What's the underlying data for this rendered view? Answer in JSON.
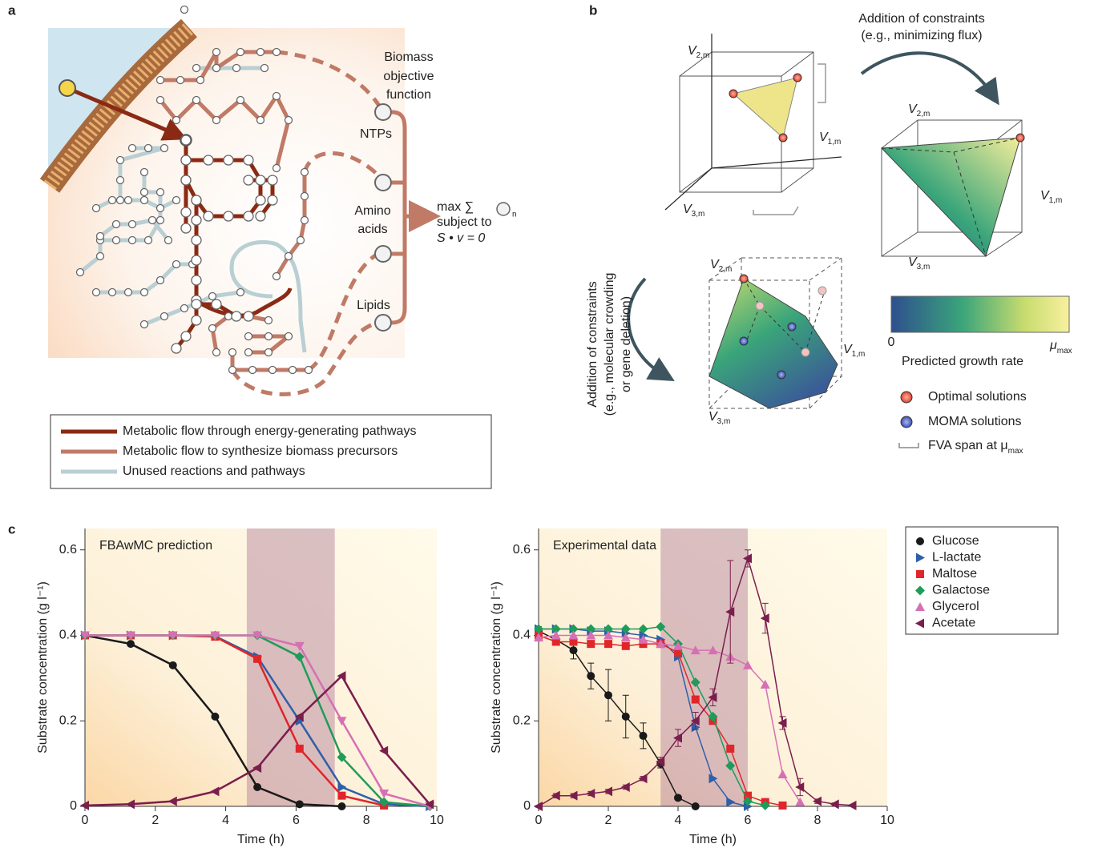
{
  "panel_labels": [
    "a",
    "b",
    "c"
  ],
  "panel_a": {
    "biomass_label": [
      "Biomass",
      "objective",
      "function"
    ],
    "ntps": "NTPs",
    "amino_acids": [
      "Amino",
      "acids"
    ],
    "lipids": "Lipids",
    "objective": {
      "max": "max ∑",
      "subscript": "n",
      "subject": "subject to",
      "constraint": "S • v = 0"
    },
    "legend": [
      "Metabolic flow through energy-generating pathways",
      "Metabolic flow to synthesize biomass precursors",
      "Unused reactions and pathways"
    ]
  },
  "panel_b": {
    "top_arrow": [
      "Addition of constraints",
      "(e.g., minimizing flux)"
    ],
    "side_arrow": [
      "Addition of constraints",
      "(e.g., molecular crowding",
      "or gene deletion)"
    ],
    "axis_symbol": "V",
    "axis_subscripts": [
      "1,m",
      "2,m",
      "3,m"
    ],
    "colorbar": {
      "min_label": 0,
      "max_symbol": "μ",
      "max_subscript": "max",
      "title": "Predicted growth rate"
    },
    "legend": [
      "Optimal solutions",
      "MOMA solutions"
    ],
    "fva": {
      "text": "FVA span at μ",
      "subscript": "max"
    }
  },
  "chart_data": [
    {
      "type": "line",
      "annotation": "FBAwMC prediction",
      "xlabel": "Time (h)",
      "ylabel": "Substrate concentration (g l⁻¹)",
      "xlim": [
        0,
        10
      ],
      "ylim": [
        0,
        0.65
      ],
      "xticks": [
        0,
        2,
        4,
        6,
        8,
        10
      ],
      "yticks": [
        0,
        0.2,
        0.4,
        0.6
      ],
      "shaded_span": [
        4.6,
        7.1
      ],
      "series": [
        {
          "color": "#1a1a1a",
          "marker": "circle",
          "x": [
            0,
            1.3,
            2.5,
            3.7,
            4.9,
            6.1,
            7.3
          ],
          "values": [
            0.4,
            0.38,
            0.33,
            0.21,
            0.045,
            0.005,
            0
          ]
        },
        {
          "color": "#2f5fa8",
          "marker": "triangle-right",
          "x": [
            0,
            1.3,
            2.5,
            3.7,
            4.9,
            6.1,
            7.3,
            8.5,
            9.8
          ],
          "values": [
            0.4,
            0.4,
            0.4,
            0.398,
            0.35,
            0.2,
            0.045,
            0.005,
            0
          ]
        },
        {
          "color": "#e0262b",
          "marker": "square",
          "x": [
            0,
            1.3,
            2.5,
            3.7,
            4.9,
            6.1,
            7.3,
            8.5
          ],
          "values": [
            0.4,
            0.4,
            0.4,
            0.397,
            0.345,
            0.135,
            0.025,
            0.002
          ]
        },
        {
          "color": "#1f9b5a",
          "marker": "diamond",
          "x": [
            0,
            1.3,
            2.5,
            3.7,
            4.9,
            6.1,
            7.3,
            8.5,
            9.8
          ],
          "values": [
            0.4,
            0.4,
            0.4,
            0.4,
            0.4,
            0.35,
            0.115,
            0.01,
            0
          ]
        },
        {
          "color": "#d670b4",
          "marker": "triangle-down",
          "x": [
            0,
            1.3,
            2.5,
            3.7,
            4.9,
            6.1,
            7.3,
            8.5,
            9.8
          ],
          "values": [
            0.4,
            0.4,
            0.4,
            0.4,
            0.4,
            0.375,
            0.2,
            0.03,
            0
          ]
        },
        {
          "color": "#7a1e4d",
          "marker": "triangle-left",
          "x": [
            0,
            1.3,
            2.5,
            3.7,
            4.9,
            6.1,
            7.3,
            8.5,
            9.8
          ],
          "values": [
            0.002,
            0.005,
            0.012,
            0.035,
            0.09,
            0.21,
            0.305,
            0.13,
            0.005
          ]
        }
      ]
    },
    {
      "type": "line",
      "annotation": "Experimental data",
      "xlabel": "Time (h)",
      "ylabel": "Substrate concentration (g l⁻¹)",
      "xlim": [
        0,
        10
      ],
      "ylim": [
        0,
        0.65
      ],
      "xticks": [
        0,
        2,
        4,
        6,
        8,
        10
      ],
      "yticks": [
        0,
        0.2,
        0.4,
        0.6
      ],
      "shaded_span": [
        3.5,
        6
      ],
      "series": [
        {
          "name": "Glucose",
          "color": "#1a1a1a",
          "marker": "circle",
          "x": [
            0,
            0.5,
            1,
            1.5,
            2,
            2.5,
            3,
            3.5,
            4,
            4.5
          ],
          "values": [
            0.41,
            0.39,
            0.365,
            0.305,
            0.26,
            0.21,
            0.165,
            0.1,
            0.02,
            0
          ],
          "errors": [
            0.01,
            0.01,
            0.02,
            0.03,
            0.06,
            0.05,
            0.03,
            0.01,
            0.005,
            0.003
          ]
        },
        {
          "name": "L-lactate",
          "color": "#2f5fa8",
          "marker": "triangle-right",
          "x": [
            0,
            0.5,
            1,
            1.5,
            2,
            2.5,
            3,
            3.5,
            4,
            4.5,
            5,
            5.5,
            6
          ],
          "values": [
            0.415,
            0.415,
            0.415,
            0.41,
            0.41,
            0.405,
            0.4,
            0.39,
            0.35,
            0.185,
            0.065,
            0.01,
            0
          ]
        },
        {
          "name": "Maltose",
          "color": "#e0262b",
          "marker": "square",
          "x": [
            0,
            0.5,
            1,
            1.5,
            2,
            2.5,
            3,
            3.5,
            4,
            4.5,
            5,
            5.5,
            6,
            6.5,
            7
          ],
          "values": [
            0.4,
            0.385,
            0.385,
            0.38,
            0.38,
            0.375,
            0.38,
            0.38,
            0.36,
            0.25,
            0.2,
            0.135,
            0.025,
            0.01,
            0.002
          ]
        },
        {
          "name": "Galactose",
          "color": "#1f9b5a",
          "marker": "diamond",
          "x": [
            0,
            0.5,
            1,
            1.5,
            2,
            2.5,
            3,
            3.5,
            4,
            4.5,
            5,
            5.5,
            6,
            6.5
          ],
          "values": [
            0.415,
            0.415,
            0.415,
            0.415,
            0.415,
            0.415,
            0.415,
            0.42,
            0.38,
            0.29,
            0.21,
            0.095,
            0.012,
            0.002
          ]
        },
        {
          "name": "Glycerol",
          "color": "#d670b4",
          "marker": "triangle-up",
          "x": [
            0,
            0.5,
            1,
            1.5,
            2,
            2.5,
            3,
            3.5,
            4,
            4.5,
            5,
            5.5,
            6,
            6.5,
            7,
            7.5
          ],
          "values": [
            0.395,
            0.4,
            0.4,
            0.4,
            0.4,
            0.395,
            0.39,
            0.38,
            0.375,
            0.365,
            0.365,
            0.35,
            0.33,
            0.285,
            0.075,
            0.01
          ]
        },
        {
          "name": "Acetate",
          "color": "#7a1e4d",
          "marker": "triangle-left",
          "x": [
            0,
            0.5,
            1,
            1.5,
            2,
            2.5,
            3,
            3.5,
            4,
            4.5,
            5,
            5.5,
            6,
            6.5,
            7,
            7.5,
            8,
            8.5,
            9
          ],
          "values": [
            0,
            0.025,
            0.025,
            0.03,
            0.035,
            0.045,
            0.065,
            0.105,
            0.16,
            0.2,
            0.255,
            0.455,
            0.58,
            0.44,
            0.195,
            0.045,
            0.012,
            0.005,
            0.002
          ],
          "errors": [
            0.002,
            0.005,
            0.005,
            0.005,
            0.005,
            0.005,
            0.005,
            0.01,
            0.02,
            0.02,
            0.02,
            0.12,
            0.02,
            0.035,
            0.015,
            0.02,
            0.005,
            0.003,
            0.002
          ]
        }
      ]
    }
  ]
}
